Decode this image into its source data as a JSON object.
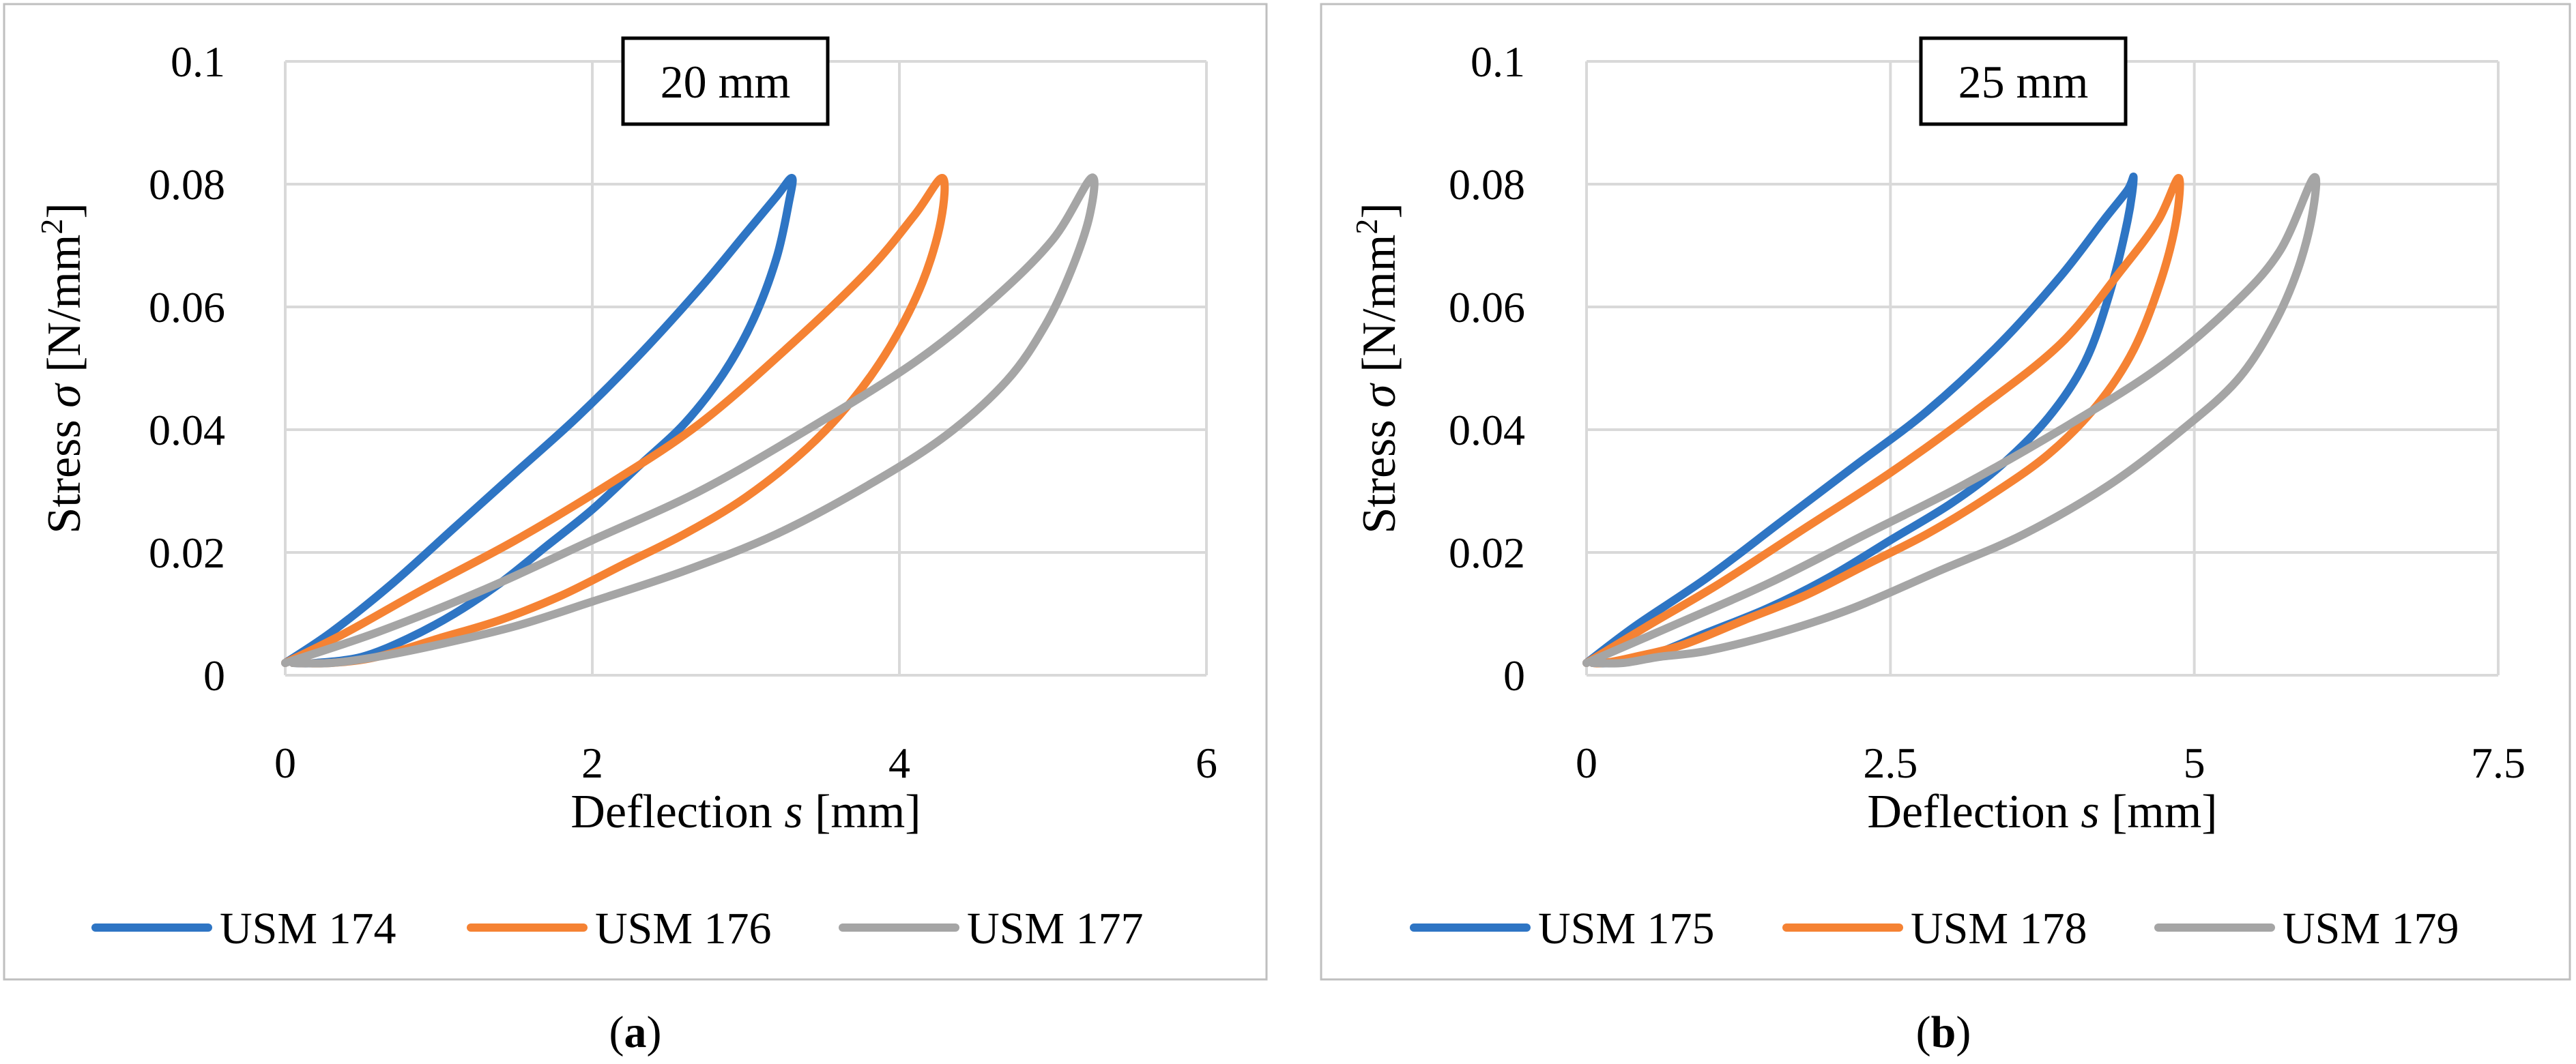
{
  "chart_data": [
    {
      "type": "line",
      "panel_label": "a",
      "title": "20 mm",
      "xlabel": "Deflection s [mm]",
      "xlabel_parts": [
        "Deflection ",
        "s",
        " [mm]"
      ],
      "ylabel": "Stress σ [N/mm²]",
      "ylabel_parts": [
        "Stress ",
        "σ",
        " [N/mm",
        "2",
        "]"
      ],
      "xlim": [
        0,
        6
      ],
      "ylim": [
        0,
        0.1
      ],
      "xticks": [
        "0",
        "2",
        "4",
        "6"
      ],
      "yticks": [
        "0",
        "0.02",
        "0.04",
        "0.06",
        "0.08",
        "0.1"
      ],
      "grid": true,
      "legend_position": "bottom",
      "series": [
        {
          "name": "USM 174",
          "color": "#2e75c4",
          "x": [
            0,
            0.3,
            0.7,
            1.1,
            1.5,
            1.9,
            2.3,
            2.7,
            3.0,
            3.2,
            3.3,
            3.28,
            3.2,
            3.05,
            2.85,
            2.6,
            2.3,
            2.0,
            1.7,
            1.4,
            1.1,
            0.8,
            0.5,
            0.2,
            0.05
          ],
          "y": [
            0.002,
            0.007,
            0.015,
            0.024,
            0.033,
            0.042,
            0.052,
            0.063,
            0.072,
            0.078,
            0.081,
            0.077,
            0.068,
            0.058,
            0.049,
            0.041,
            0.034,
            0.027,
            0.021,
            0.015,
            0.01,
            0.006,
            0.003,
            0.002,
            0.002
          ]
        },
        {
          "name": "USM 176",
          "color": "#f58233",
          "x": [
            0,
            0.4,
            0.9,
            1.5,
            2.1,
            2.7,
            3.3,
            3.8,
            4.1,
            4.28,
            4.27,
            4.15,
            3.95,
            3.7,
            3.4,
            3.0,
            2.6,
            2.2,
            1.8,
            1.4,
            1.0,
            0.6,
            0.3,
            0.05
          ],
          "y": [
            0.002,
            0.007,
            0.014,
            0.022,
            0.031,
            0.041,
            0.054,
            0.066,
            0.075,
            0.081,
            0.074,
            0.064,
            0.054,
            0.045,
            0.037,
            0.029,
            0.023,
            0.018,
            0.013,
            0.009,
            0.006,
            0.003,
            0.002,
            0.002
          ]
        },
        {
          "name": "USM 177",
          "color": "#a5a5a5",
          "x": [
            0,
            0.6,
            1.3,
            2.0,
            2.7,
            3.4,
            4.1,
            4.6,
            5.0,
            5.25,
            5.24,
            5.12,
            4.95,
            4.7,
            4.3,
            3.8,
            3.2,
            2.6,
            2.0,
            1.5,
            1.0,
            0.6,
            0.3,
            0.05
          ],
          "y": [
            0.002,
            0.007,
            0.014,
            0.022,
            0.03,
            0.04,
            0.051,
            0.061,
            0.071,
            0.081,
            0.075,
            0.066,
            0.057,
            0.048,
            0.039,
            0.031,
            0.023,
            0.017,
            0.012,
            0.008,
            0.005,
            0.003,
            0.002,
            0.002
          ]
        }
      ]
    },
    {
      "type": "line",
      "panel_label": "b",
      "title": "25 mm",
      "xlabel": "Deflection s [mm]",
      "xlabel_parts": [
        "Deflection ",
        "s",
        " [mm]"
      ],
      "ylabel": "Stress σ [N/mm²]",
      "ylabel_parts": [
        "Stress ",
        "σ",
        " [N/mm",
        "2",
        "]"
      ],
      "xlim": [
        0,
        7.5
      ],
      "ylim": [
        0,
        0.1
      ],
      "xticks": [
        "0",
        "2.5",
        "5",
        "7.5"
      ],
      "yticks": [
        "0",
        "0.02",
        "0.04",
        "0.06",
        "0.08",
        "0.1"
      ],
      "grid": true,
      "legend_position": "bottom",
      "series": [
        {
          "name": "USM 175",
          "color": "#2e75c4",
          "x": [
            0,
            0.4,
            1.0,
            1.6,
            2.2,
            2.8,
            3.4,
            3.9,
            4.25,
            4.45,
            4.5,
            4.45,
            4.3,
            4.1,
            3.8,
            3.4,
            3.0,
            2.5,
            2.0,
            1.5,
            1.0,
            0.5,
            0.2,
            0.05
          ],
          "y": [
            0.002,
            0.008,
            0.016,
            0.025,
            0.034,
            0.043,
            0.054,
            0.065,
            0.074,
            0.079,
            0.081,
            0.074,
            0.062,
            0.051,
            0.042,
            0.034,
            0.028,
            0.022,
            0.016,
            0.011,
            0.007,
            0.003,
            0.002,
            0.002
          ]
        },
        {
          "name": "USM 178",
          "color": "#f58233",
          "x": [
            0,
            0.5,
            1.1,
            1.8,
            2.5,
            3.2,
            3.9,
            4.4,
            4.7,
            4.87,
            4.85,
            4.72,
            4.5,
            4.2,
            3.8,
            3.3,
            2.8,
            2.3,
            1.8,
            1.3,
            0.8,
            0.4,
            0.15,
            0.05
          ],
          "y": [
            0.002,
            0.008,
            0.015,
            0.024,
            0.033,
            0.043,
            0.054,
            0.066,
            0.074,
            0.081,
            0.074,
            0.064,
            0.053,
            0.044,
            0.036,
            0.029,
            0.023,
            0.018,
            0.013,
            0.009,
            0.005,
            0.003,
            0.002,
            0.002
          ]
        },
        {
          "name": "USM 179",
          "color": "#a5a5a5",
          "x": [
            0,
            0.7,
            1.5,
            2.3,
            3.1,
            3.9,
            4.7,
            5.3,
            5.7,
            5.98,
            5.97,
            5.85,
            5.65,
            5.35,
            4.9,
            4.3,
            3.6,
            2.9,
            2.2,
            1.6,
            1.0,
            0.6,
            0.3,
            0.05
          ],
          "y": [
            0.002,
            0.008,
            0.015,
            0.023,
            0.031,
            0.04,
            0.05,
            0.06,
            0.069,
            0.081,
            0.075,
            0.066,
            0.057,
            0.048,
            0.04,
            0.031,
            0.023,
            0.017,
            0.011,
            0.007,
            0.004,
            0.003,
            0.002,
            0.002
          ]
        }
      ]
    }
  ]
}
